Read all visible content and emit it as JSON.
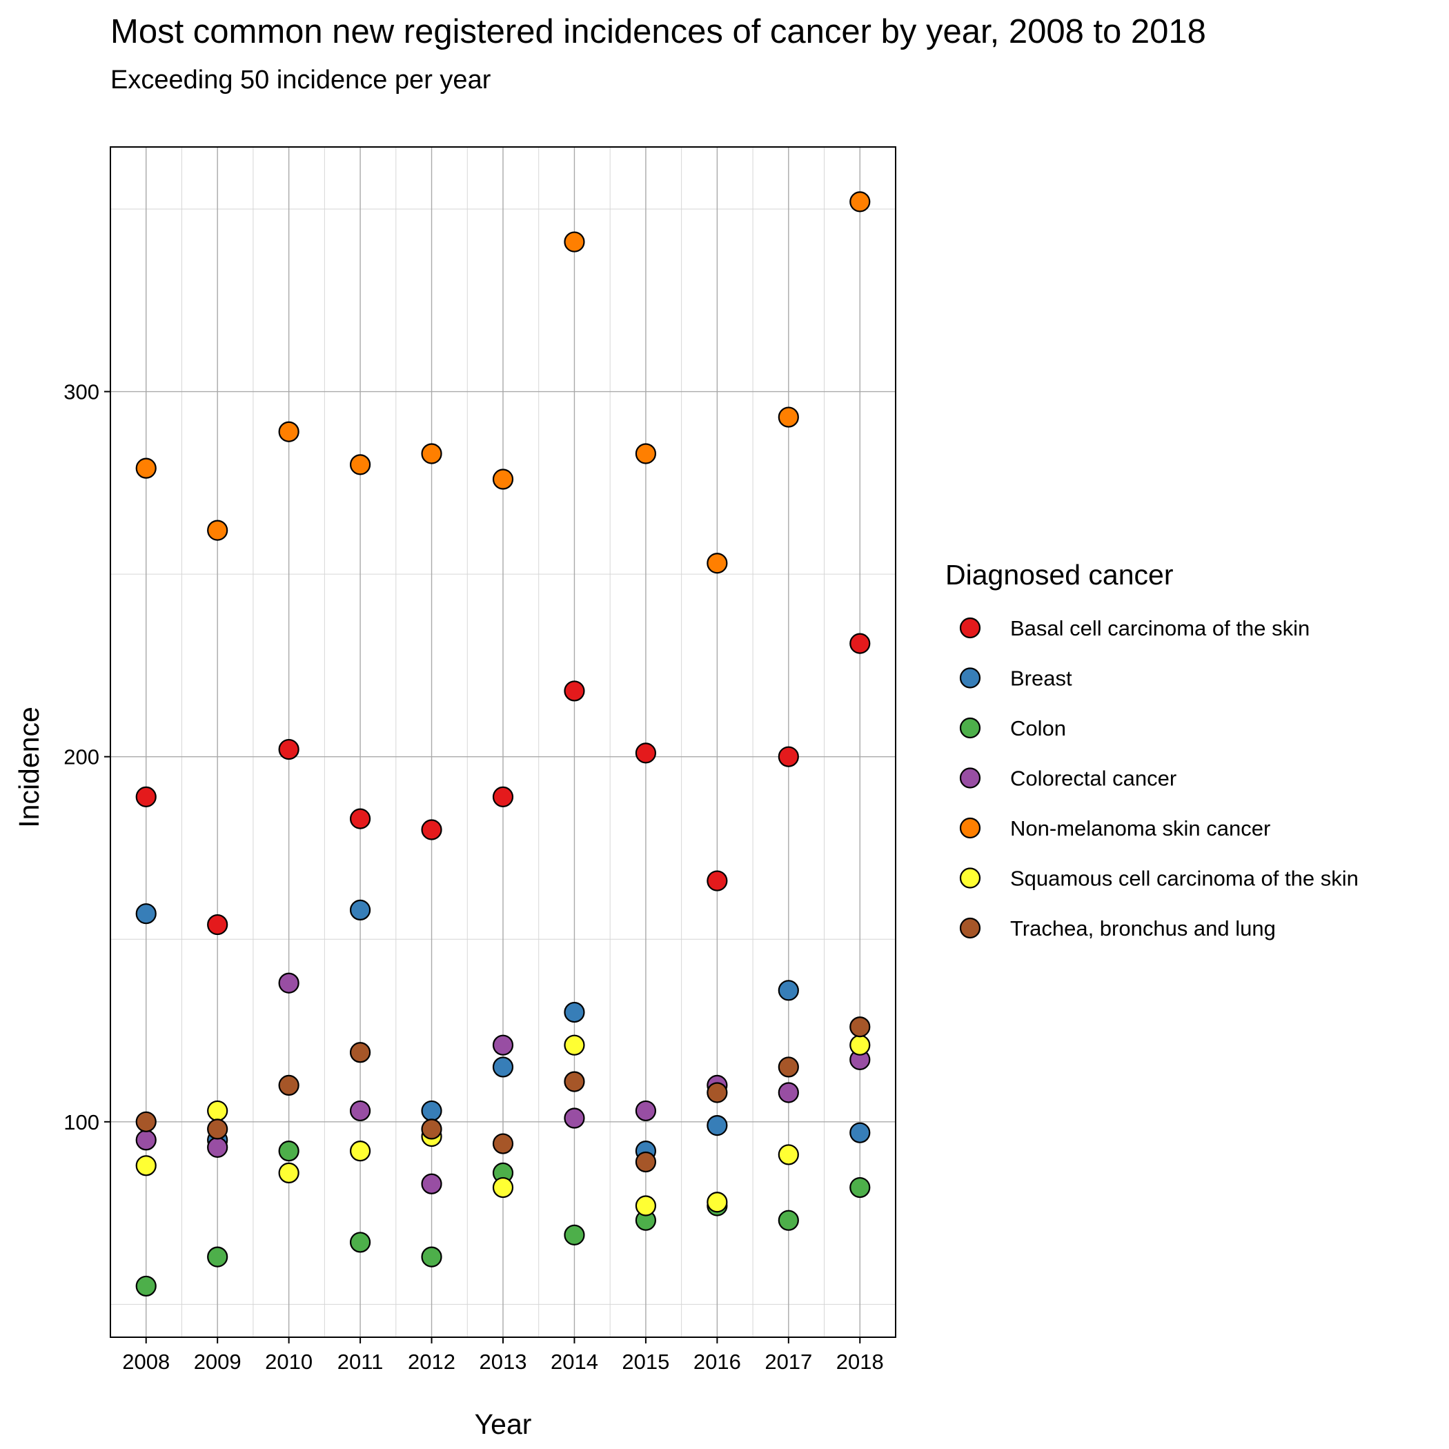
{
  "chart_data": {
    "type": "scatter",
    "title": "Most common new registered incidences of cancer by year, 2008 to 2018",
    "subtitle": "Exceeding 50 incidence per year",
    "xlabel": "Year",
    "ylabel": "Incidence",
    "x": [
      2008,
      2009,
      2010,
      2011,
      2012,
      2013,
      2014,
      2015,
      2016,
      2017,
      2018
    ],
    "xlim": [
      2007.5,
      2018.5
    ],
    "ylim": [
      41,
      367
    ],
    "yticks": [
      100,
      200,
      300
    ],
    "grid": true,
    "legend": {
      "title": "Diagnosed cancer",
      "position": "right"
    },
    "series": [
      {
        "name": "Basal cell carcinoma of the skin",
        "color": "#E41A1C",
        "values": [
          189,
          154,
          202,
          183,
          180,
          189,
          218,
          201,
          166,
          200,
          231
        ]
      },
      {
        "name": "Breast",
        "color": "#377EB8",
        "values": [
          157,
          95,
          null,
          158,
          103,
          115,
          130,
          92,
          99,
          136,
          97
        ]
      },
      {
        "name": "Colon",
        "color": "#4DAF4A",
        "values": [
          55,
          63,
          92,
          67,
          63,
          86,
          69,
          73,
          77,
          73,
          82
        ]
      },
      {
        "name": "Colorectal cancer",
        "color": "#984EA3",
        "values": [
          95,
          93,
          138,
          103,
          83,
          121,
          101,
          103,
          110,
          108,
          117
        ]
      },
      {
        "name": "Non-melanoma skin cancer",
        "color": "#FF7F00",
        "values": [
          279,
          262,
          289,
          280,
          283,
          276,
          341,
          283,
          253,
          293,
          352
        ]
      },
      {
        "name": "Squamous cell carcinoma of the skin",
        "color": "#FFFF33",
        "values": [
          88,
          103,
          86,
          92,
          96,
          82,
          121,
          77,
          78,
          91,
          121
        ]
      },
      {
        "name": "Trachea, bronchus and lung",
        "color": "#A65628",
        "values": [
          100,
          98,
          110,
          119,
          98,
          94,
          111,
          89,
          108,
          115,
          126
        ]
      }
    ]
  }
}
